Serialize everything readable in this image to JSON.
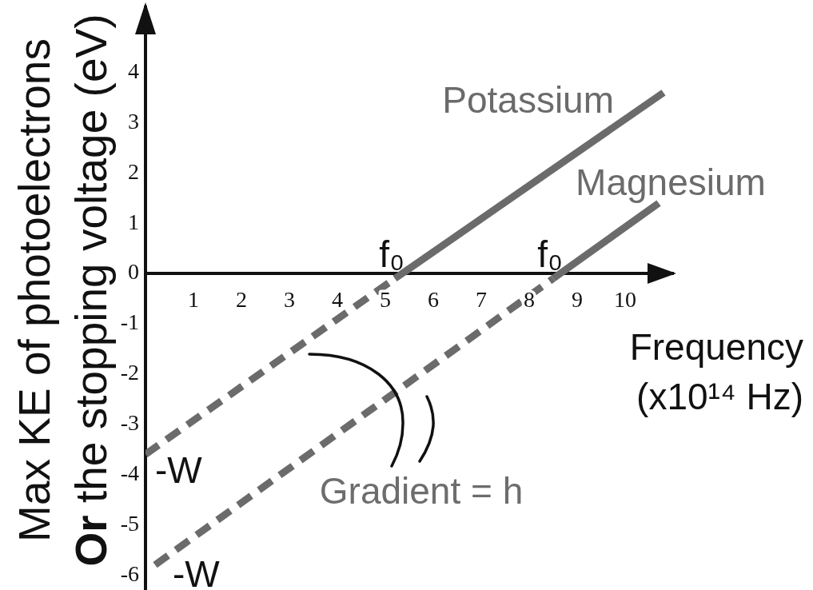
{
  "chart_data": {
    "type": "line",
    "xlabel": "Frequency\n(x10¹⁴ Hz)",
    "ylabel": "Max KE of photoelectrons\nOr the stopping voltage (eV)",
    "xlim": [
      0,
      11
    ],
    "xticks": [
      1,
      2,
      3,
      4,
      5,
      6,
      7,
      8,
      9,
      10
    ],
    "ylim": [
      -6.3,
      5.3
    ],
    "yticks": [
      -6,
      -5,
      -4,
      -3,
      -2,
      -1,
      0,
      1,
      2,
      3,
      4
    ],
    "marker": "none",
    "series": [
      {
        "name": "Potassium",
        "color": "#6b6b6b",
        "x": [
          5.2,
          10.8
        ],
        "values": [
          -0.1,
          3.6
        ],
        "line_style": "solid"
      },
      {
        "color": "#6b6b6b",
        "x": [
          0,
          5.2
        ],
        "values": [
          -3.6,
          -0.1
        ],
        "line_style": "dashed"
      },
      {
        "name": "Magnesium",
        "color": "#6b6b6b",
        "x": [
          8.5,
          10.7
        ],
        "values": [
          -0.1,
          1.4
        ],
        "line_style": "solid"
      },
      {
        "color": "#6b6b6b",
        "x": [
          0.2,
          8.5
        ],
        "values": [
          -5.8,
          -0.1
        ],
        "line_style": "dashed"
      }
    ],
    "annotations": [
      {
        "text": "f₀",
        "x": 5.4,
        "y": 0
      },
      {
        "text": "f₀",
        "x": 8.7,
        "y": 0
      },
      {
        "text": "-W",
        "x": 0,
        "y": -3.6
      },
      {
        "text": "-W",
        "x": 0.2,
        "y": -5.8
      },
      "Gradient = h"
    ]
  }
}
